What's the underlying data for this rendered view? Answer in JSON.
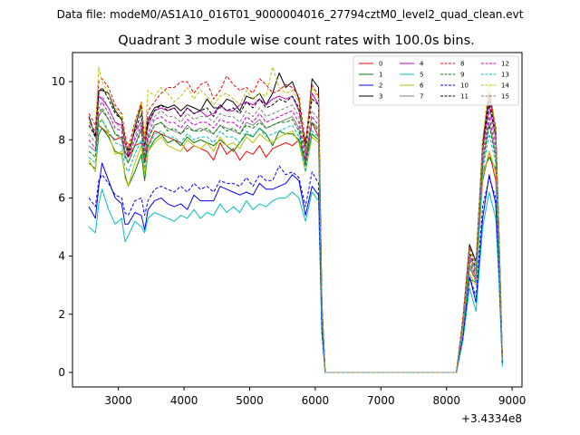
{
  "suptitle": "Data file: modeM0/AS1A10_016T01_9000004016_27794cztM0_level2_quad_clean.evt",
  "chart_data": {
    "type": "line",
    "title": "Quadrant 3 module wise count rates with 100.0s bins.",
    "xlabel": "",
    "ylabel": "",
    "x_offset_label": "+3.4334e8",
    "xlim": [
      2300,
      9150
    ],
    "ylim": [
      -0.5,
      11.0
    ],
    "xticks": [
      3000,
      4000,
      5000,
      6000,
      7000,
      8000,
      9000
    ],
    "yticks": [
      0,
      2,
      4,
      6,
      8,
      10
    ],
    "grid": false,
    "legend_position": "top-right",
    "x": [
      2550,
      2650,
      2700,
      2750,
      2850,
      2950,
      3050,
      3100,
      3150,
      3250,
      3350,
      3400,
      3450,
      3550,
      3650,
      3750,
      3850,
      3950,
      4050,
      4150,
      4250,
      4350,
      4450,
      4550,
      4650,
      4750,
      4850,
      4950,
      5050,
      5150,
      5250,
      5350,
      5450,
      5550,
      5650,
      5750,
      5850,
      5950,
      6050,
      6100,
      6150,
      6250,
      6350,
      6450,
      6550,
      6650,
      6750,
      6850,
      6950,
      7050,
      7150,
      7250,
      7350,
      7450,
      7550,
      7650,
      7750,
      7850,
      7950,
      8050,
      8150,
      8250,
      8350,
      8450,
      8550,
      8650,
      8750,
      8800,
      8850
    ],
    "series": [
      {
        "name": "0",
        "color": "#ff0000",
        "dash": false,
        "values": [
          8.8,
          8.1,
          8.5,
          8.4,
          8.2,
          8.0,
          8.1,
          7.6,
          7.4,
          7.8,
          7.9,
          7.2,
          7.8,
          8.3,
          8.2,
          8.1,
          8.0,
          7.9,
          7.6,
          7.8,
          7.7,
          7.6,
          7.3,
          7.9,
          7.5,
          7.7,
          7.3,
          7.6,
          7.5,
          7.8,
          7.4,
          7.7,
          7.8,
          7.9,
          7.8,
          8.0,
          7.3,
          8.6,
          8.1,
          2.1,
          0,
          0,
          0,
          0,
          0,
          0,
          0,
          0,
          0,
          0,
          0,
          0,
          0,
          0,
          0,
          0,
          0,
          0,
          0,
          0,
          0,
          1.8,
          3.6,
          3.2,
          6.6,
          7.6,
          6.6,
          4.2,
          0.5
        ]
      },
      {
        "name": "1",
        "color": "#008000",
        "dash": false,
        "values": [
          7.2,
          7.0,
          8.2,
          8.4,
          8.1,
          7.6,
          7.5,
          6.8,
          6.4,
          6.9,
          7.5,
          6.6,
          7.6,
          8.0,
          8.2,
          7.9,
          8.0,
          7.8,
          8.1,
          7.9,
          8.0,
          7.9,
          7.8,
          8.0,
          7.8,
          7.6,
          7.9,
          8.2,
          8.1,
          8.4,
          8.2,
          7.8,
          8.3,
          8.2,
          8.2,
          8.0,
          7.2,
          8.2,
          8.0,
          2.3,
          0,
          0,
          0,
          0,
          0,
          0,
          0,
          0,
          0,
          0,
          0,
          0,
          0,
          0,
          0,
          0,
          0,
          0,
          0,
          0,
          0,
          1.6,
          3.2,
          3.1,
          6.9,
          7.4,
          7.0,
          3.9,
          0.4
        ]
      },
      {
        "name": "2",
        "color": "#0000ff",
        "dash": false,
        "values": [
          5.7,
          5.3,
          6.4,
          7.2,
          6.6,
          6.0,
          5.8,
          5.1,
          5.1,
          5.5,
          5.4,
          4.9,
          5.6,
          5.9,
          6.0,
          5.8,
          5.7,
          5.8,
          5.6,
          6.1,
          5.9,
          5.9,
          5.9,
          6.4,
          6.3,
          6.2,
          6.1,
          6.2,
          6.1,
          6.5,
          6.3,
          6.3,
          6.4,
          6.5,
          6.8,
          6.6,
          5.4,
          6.4,
          6.1,
          1.4,
          0,
          0,
          0,
          0,
          0,
          0,
          0,
          0,
          0,
          0,
          0,
          0,
          0,
          0,
          0,
          0,
          0,
          0,
          0,
          0,
          0,
          1.2,
          3.3,
          2.4,
          5.3,
          6.8,
          5.8,
          3.3,
          0.3
        ]
      },
      {
        "name": "3",
        "color": "#000000",
        "dash": false,
        "values": [
          8.8,
          8.1,
          9.7,
          9.7,
          9.6,
          9.0,
          8.7,
          8.0,
          7.4,
          8.4,
          9.2,
          7.8,
          8.7,
          9.1,
          9.2,
          9.1,
          9.2,
          9.0,
          9.2,
          9.1,
          9.0,
          9.4,
          9.1,
          9.1,
          9.4,
          9.3,
          9.0,
          9.5,
          9.4,
          9.6,
          9.2,
          9.6,
          10.3,
          9.8,
          10.0,
          9.4,
          7.5,
          10.1,
          9.8,
          2.4,
          0,
          0,
          0,
          0,
          0,
          0,
          0,
          0,
          0,
          0,
          0,
          0,
          0,
          0,
          0,
          0,
          0,
          0,
          0,
          0,
          0,
          1.8,
          4.4,
          3.8,
          7.9,
          9.6,
          8.4,
          4.7,
          0.6
        ]
      },
      {
        "name": "4",
        "color": "#bf00bf",
        "dash": false,
        "values": [
          8.6,
          8.3,
          9.5,
          9.4,
          9.1,
          8.6,
          8.5,
          7.9,
          7.6,
          8.3,
          8.6,
          7.9,
          8.5,
          9.0,
          9.1,
          9.0,
          9.1,
          8.8,
          9.1,
          8.9,
          9.0,
          8.8,
          8.9,
          9.2,
          9.0,
          9.0,
          9.2,
          9.3,
          9.2,
          9.4,
          9.2,
          9.4,
          9.5,
          9.4,
          9.5,
          9.0,
          7.9,
          9.6,
          9.2,
          2.3,
          0,
          0,
          0,
          0,
          0,
          0,
          0,
          0,
          0,
          0,
          0,
          0,
          0,
          0,
          0,
          0,
          0,
          0,
          0,
          0,
          0,
          1.7,
          4.0,
          3.5,
          7.6,
          9.2,
          8.1,
          4.5,
          0.5
        ]
      },
      {
        "name": "5",
        "color": "#00bfbf",
        "dash": false,
        "values": [
          5.0,
          4.8,
          5.8,
          6.3,
          5.6,
          5.1,
          5.3,
          4.5,
          4.7,
          5.2,
          5.0,
          4.8,
          5.3,
          5.5,
          5.4,
          5.3,
          5.2,
          5.4,
          5.3,
          5.6,
          5.3,
          5.5,
          5.4,
          5.8,
          5.5,
          5.7,
          5.5,
          5.9,
          5.6,
          5.8,
          5.7,
          5.9,
          6.0,
          6.0,
          6.2,
          6.0,
          5.2,
          6.2,
          5.9,
          1.3,
          0,
          0,
          0,
          0,
          0,
          0,
          0,
          0,
          0,
          0,
          0,
          0,
          0,
          0,
          0,
          0,
          0,
          0,
          0,
          0,
          0,
          1.1,
          2.9,
          2.1,
          5.0,
          6.2,
          5.3,
          3.1,
          0.2
        ]
      },
      {
        "name": "6",
        "color": "#bfbf00",
        "dash": false,
        "values": [
          7.3,
          6.9,
          8.6,
          8.7,
          8.2,
          7.5,
          7.6,
          6.7,
          6.4,
          7.2,
          7.8,
          6.8,
          7.6,
          7.9,
          8.1,
          7.8,
          7.7,
          7.6,
          8.0,
          7.8,
          7.7,
          7.9,
          7.6,
          8.1,
          7.8,
          7.9,
          7.7,
          8.1,
          7.9,
          8.2,
          8.0,
          7.9,
          8.1,
          8.2,
          8.3,
          7.9,
          6.9,
          8.1,
          7.9,
          2.2,
          0,
          0,
          0,
          0,
          0,
          0,
          0,
          0,
          0,
          0,
          0,
          0,
          0,
          0,
          0,
          0,
          0,
          0,
          0,
          0,
          0,
          1.5,
          3.4,
          3.0,
          6.7,
          7.6,
          6.9,
          3.9,
          0.4
        ]
      },
      {
        "name": "7",
        "color": "#808080",
        "dash": false,
        "values": [
          7.8,
          7.6,
          8.8,
          9.0,
          8.7,
          8.2,
          8.0,
          7.5,
          7.2,
          7.8,
          8.4,
          7.3,
          8.1,
          8.5,
          8.6,
          8.4,
          8.3,
          8.2,
          8.5,
          8.3,
          8.4,
          8.3,
          8.2,
          8.5,
          8.4,
          8.3,
          8.2,
          8.6,
          8.5,
          8.7,
          8.4,
          8.5,
          8.6,
          8.7,
          8.8,
          8.4,
          7.1,
          8.6,
          8.4,
          2.2,
          0,
          0,
          0,
          0,
          0,
          0,
          0,
          0,
          0,
          0,
          0,
          0,
          0,
          0,
          0,
          0,
          0,
          0,
          0,
          0,
          0,
          1.6,
          3.7,
          3.3,
          7.2,
          8.6,
          7.5,
          4.2,
          0.5
        ]
      },
      {
        "name": "8",
        "color": "#ff0000",
        "dash": true,
        "values": [
          8.9,
          8.5,
          10.0,
          10.1,
          9.8,
          9.2,
          8.9,
          8.2,
          7.7,
          8.6,
          9.3,
          8.0,
          9.0,
          9.3,
          9.6,
          9.8,
          9.8,
          10.0,
          10.0,
          9.6,
          9.9,
          10.0,
          9.4,
          9.7,
          10.2,
          9.9,
          9.7,
          9.8,
          9.6,
          10.1,
          9.9,
          9.6,
          9.7,
          9.9,
          9.8,
          9.5,
          7.9,
          9.9,
          9.5,
          2.4,
          0,
          0,
          0,
          0,
          0,
          0,
          0,
          0,
          0,
          0,
          0,
          0,
          0,
          0,
          0,
          0,
          0,
          0,
          0,
          0,
          0,
          1.9,
          4.3,
          3.7,
          8.0,
          9.5,
          8.3,
          4.7,
          0.6
        ]
      },
      {
        "name": "9",
        "color": "#008000",
        "dash": true,
        "values": [
          7.6,
          7.4,
          8.9,
          9.1,
          8.7,
          8.2,
          8.1,
          7.4,
          7.2,
          7.8,
          8.3,
          7.3,
          8.0,
          8.5,
          8.6,
          8.3,
          8.4,
          8.2,
          8.4,
          8.3,
          8.3,
          8.4,
          8.2,
          8.5,
          8.3,
          8.4,
          8.2,
          8.5,
          8.4,
          8.6,
          8.4,
          8.5,
          8.6,
          8.6,
          8.7,
          8.3,
          7.1,
          8.6,
          8.3,
          2.2,
          0,
          0,
          0,
          0,
          0,
          0,
          0,
          0,
          0,
          0,
          0,
          0,
          0,
          0,
          0,
          0,
          0,
          0,
          0,
          0,
          0,
          1.6,
          3.8,
          3.3,
          7.1,
          8.5,
          7.4,
          4.2,
          0.5
        ]
      },
      {
        "name": "10",
        "color": "#0000ff",
        "dash": true,
        "values": [
          6.0,
          5.7,
          6.6,
          6.8,
          6.5,
          6.1,
          6.0,
          5.5,
          5.4,
          5.9,
          6.0,
          5.4,
          5.9,
          6.3,
          6.4,
          6.3,
          6.2,
          6.4,
          6.2,
          6.5,
          6.3,
          6.4,
          6.2,
          6.6,
          6.5,
          6.5,
          6.4,
          6.7,
          6.4,
          6.8,
          6.6,
          6.6,
          7.1,
          6.8,
          6.9,
          6.7,
          5.7,
          6.9,
          6.5,
          1.5,
          0,
          0,
          0,
          0,
          0,
          0,
          0,
          0,
          0,
          0,
          0,
          0,
          0,
          0,
          0,
          0,
          0,
          0,
          0,
          0,
          0,
          1.2,
          3.3,
          2.6,
          5.7,
          6.7,
          6.0,
          3.4,
          0.3
        ]
      },
      {
        "name": "11",
        "color": "#000000",
        "dash": true,
        "values": [
          8.5,
          8.1,
          9.6,
          9.8,
          9.4,
          8.9,
          8.7,
          8.0,
          7.6,
          8.3,
          8.9,
          7.6,
          8.6,
          9.0,
          9.2,
          9.0,
          9.1,
          8.8,
          9.1,
          8.9,
          9.0,
          9.1,
          8.8,
          9.2,
          9.0,
          9.1,
          8.9,
          9.3,
          9.1,
          9.4,
          9.1,
          9.2,
          9.4,
          9.3,
          9.5,
          9.1,
          7.8,
          9.4,
          9.2,
          2.3,
          0,
          0,
          0,
          0,
          0,
          0,
          0,
          0,
          0,
          0,
          0,
          0,
          0,
          0,
          0,
          0,
          0,
          0,
          0,
          0,
          0,
          1.7,
          4.1,
          3.6,
          7.8,
          9.3,
          8.2,
          4.6,
          0.5
        ]
      },
      {
        "name": "12",
        "color": "#bf00bf",
        "dash": true,
        "values": [
          8.0,
          7.7,
          9.1,
          9.3,
          8.9,
          8.4,
          8.3,
          7.6,
          7.4,
          8.0,
          8.5,
          7.5,
          8.2,
          8.7,
          8.8,
          8.6,
          8.6,
          8.4,
          8.7,
          8.5,
          8.6,
          8.6,
          8.4,
          8.7,
          8.6,
          8.6,
          8.4,
          8.8,
          8.6,
          8.9,
          8.6,
          8.7,
          8.8,
          8.9,
          9.0,
          8.6,
          7.3,
          8.8,
          8.5,
          2.2,
          0,
          0,
          0,
          0,
          0,
          0,
          0,
          0,
          0,
          0,
          0,
          0,
          0,
          0,
          0,
          0,
          0,
          0,
          0,
          0,
          0,
          1.6,
          3.9,
          3.4,
          7.4,
          8.8,
          7.7,
          4.3,
          0.5
        ]
      },
      {
        "name": "13",
        "color": "#00bfbf",
        "dash": true,
        "values": [
          7.4,
          7.2,
          8.5,
          8.7,
          8.3,
          7.9,
          7.8,
          7.1,
          6.9,
          7.5,
          8.0,
          7.0,
          7.7,
          8.2,
          8.3,
          8.1,
          8.1,
          7.9,
          8.2,
          8.0,
          8.1,
          8.1,
          7.9,
          8.3,
          8.1,
          8.1,
          7.9,
          8.3,
          8.1,
          8.4,
          8.1,
          8.2,
          8.3,
          8.4,
          8.5,
          8.1,
          6.9,
          8.3,
          8.1,
          2.1,
          0,
          0,
          0,
          0,
          0,
          0,
          0,
          0,
          0,
          0,
          0,
          0,
          0,
          0,
          0,
          0,
          0,
          0,
          0,
          0,
          0,
          1.5,
          3.6,
          3.1,
          6.9,
          8.2,
          7.2,
          4.0,
          0.4
        ]
      },
      {
        "name": "14",
        "color": "#bfbf00",
        "dash": true,
        "values": [
          8.6,
          8.3,
          10.5,
          10.0,
          9.6,
          9.1,
          8.8,
          8.0,
          7.5,
          8.5,
          9.3,
          7.9,
          9.7,
          9.5,
          9.8,
          9.6,
          9.3,
          9.5,
          9.8,
          9.4,
          9.7,
          9.5,
          9.2,
          9.5,
          9.6,
          9.4,
          9.2,
          9.7,
          9.4,
          9.6,
          9.5,
          10.5,
          9.8,
          9.6,
          9.7,
          9.3,
          7.6,
          9.8,
          9.4,
          2.4,
          0,
          0,
          0,
          0,
          0,
          0,
          0,
          0,
          0,
          0,
          0,
          0,
          0,
          0,
          0,
          0,
          0,
          0,
          0,
          0,
          0,
          1.8,
          4.2,
          3.7,
          8.0,
          10.0,
          8.3,
          4.7,
          0.6
        ]
      },
      {
        "name": "15",
        "color": "#808080",
        "dash": true,
        "values": [
          8.2,
          7.9,
          9.3,
          9.5,
          9.1,
          8.6,
          8.4,
          7.8,
          7.5,
          8.1,
          8.7,
          7.6,
          8.4,
          8.8,
          9.0,
          8.8,
          8.8,
          8.6,
          8.9,
          8.7,
          8.8,
          8.8,
          8.6,
          8.9,
          8.8,
          8.8,
          8.6,
          9.0,
          8.8,
          9.1,
          8.8,
          8.9,
          9.0,
          9.1,
          9.2,
          8.8,
          7.5,
          9.0,
          8.7,
          2.2,
          0,
          0,
          0,
          0,
          0,
          0,
          0,
          0,
          0,
          0,
          0,
          0,
          0,
          0,
          0,
          0,
          0,
          0,
          0,
          0,
          0,
          1.6,
          4.0,
          3.5,
          7.6,
          9.0,
          7.9,
          4.4,
          0.5
        ]
      }
    ]
  }
}
